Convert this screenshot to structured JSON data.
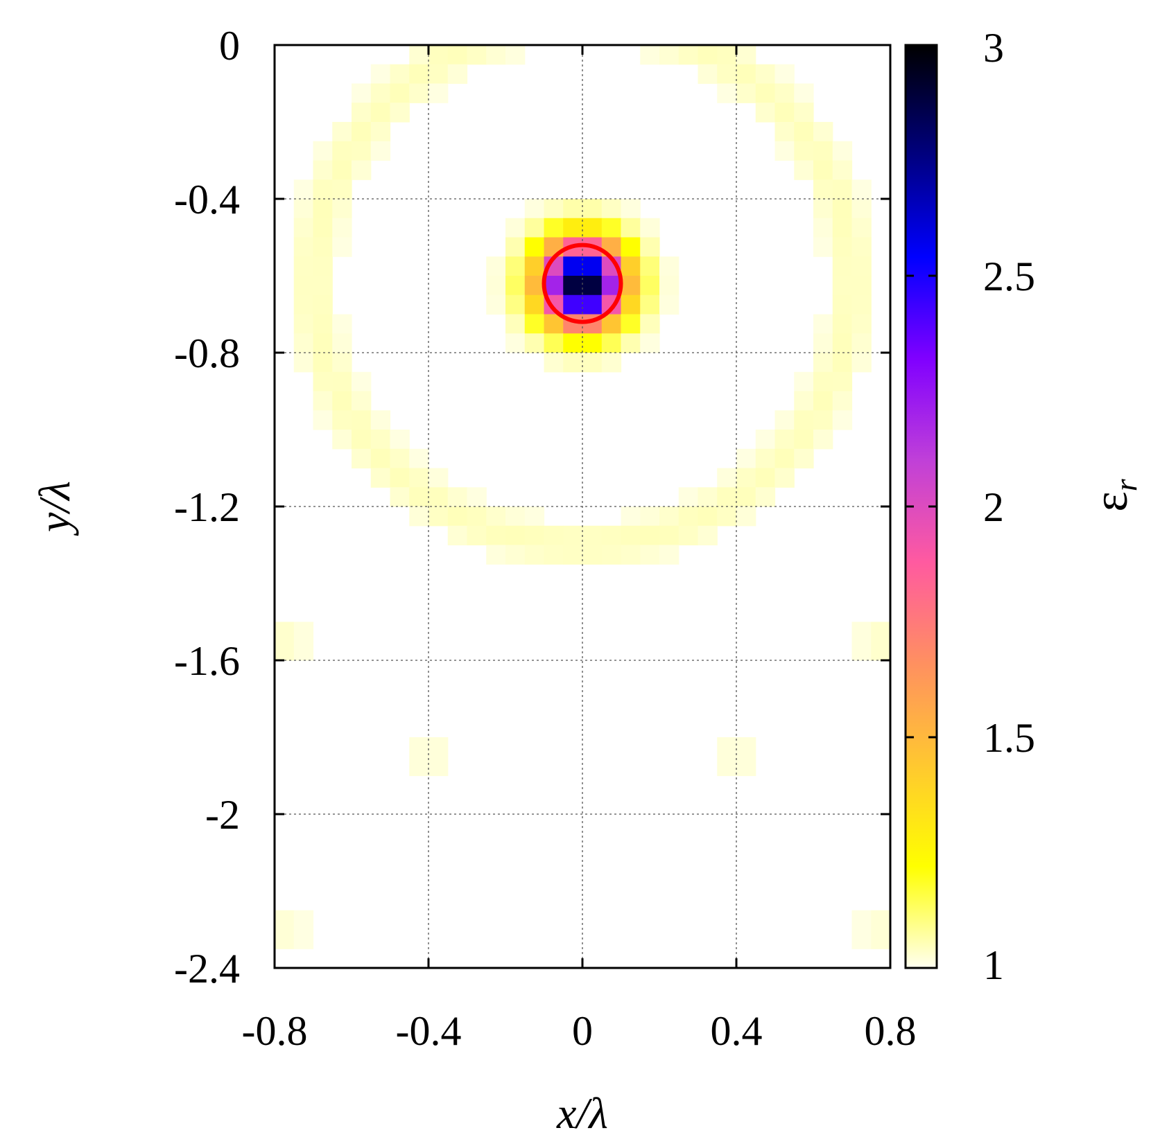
{
  "chart_data": {
    "type": "heatmap",
    "xlabel": "x/λ",
    "ylabel": "y/λ",
    "colorbar_label": "εr",
    "colorbar_label_main": "ε",
    "colorbar_label_sub": "r",
    "xlim": [
      -0.8,
      0.8
    ],
    "ylim": [
      -2.4,
      0
    ],
    "clim": [
      1,
      3
    ],
    "grid": true,
    "grid_resolution_lambda": 0.05,
    "x_ticks": [
      "-0.8",
      "-0.4",
      "0",
      "0.4",
      "0.8"
    ],
    "y_ticks": [
      "0",
      "-0.4",
      "-0.8",
      "-1.2",
      "-1.6",
      "-2",
      "-2.4"
    ],
    "colorbar_ticks": [
      "3",
      "2.5",
      "2",
      "1.5",
      "1"
    ],
    "colormap": [
      "#fffff0",
      "#ffff00",
      "#ffc830",
      "#ff9060",
      "#ff5aa0",
      "#c040d8",
      "#8000ff",
      "#0000ff",
      "#000080",
      "#000000"
    ],
    "inclusion": {
      "center_x": 0.0,
      "center_y": -0.62,
      "value": 3.0,
      "radius_lambda": 0.1
    },
    "ring_artifact": {
      "center_x": 0.0,
      "center_y": -0.62,
      "radius_x": 0.7,
      "radius_y": 0.68,
      "value": 1.05
    },
    "side_artifacts": [
      {
        "x": -0.77,
        "y": -1.55,
        "value": 1.04
      },
      {
        "x": 0.77,
        "y": -1.55,
        "value": 1.04
      },
      {
        "x": -0.4,
        "y": -1.85,
        "value": 1.03
      },
      {
        "x": 0.4,
        "y": -1.85,
        "value": 1.03
      },
      {
        "x": -0.77,
        "y": -2.3,
        "value": 1.03
      },
      {
        "x": 0.77,
        "y": -2.3,
        "value": 1.03
      }
    ],
    "true_object_outline": {
      "center_x": 0.0,
      "center_y": -0.62,
      "radius": 0.1,
      "color": "#ff0000"
    }
  }
}
